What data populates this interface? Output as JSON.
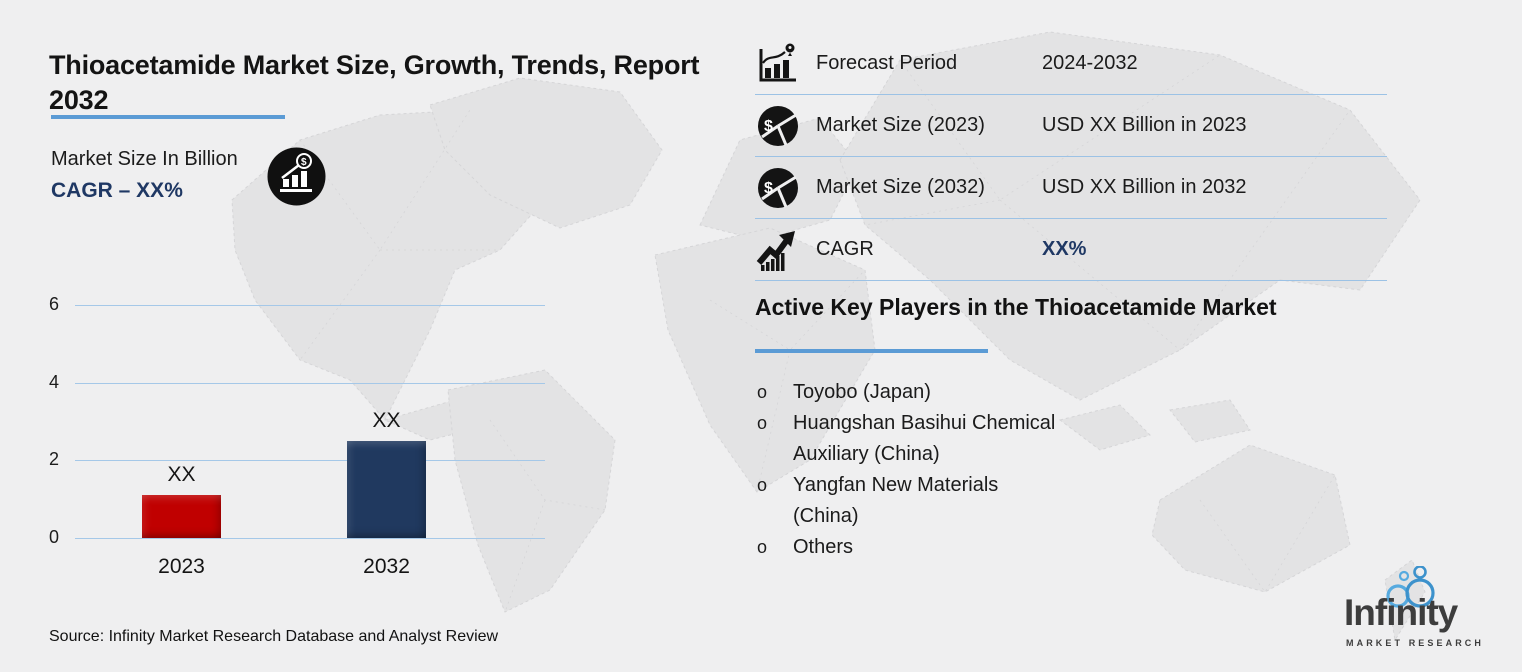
{
  "colors": {
    "accent_blue": "#5b9bd5",
    "grid_blue": "#a5c8e8",
    "navy": "#1f3864",
    "bar_red": "#c00000",
    "bar_navy": "#20395f",
    "background": "#efeff0"
  },
  "header": {
    "title": "Thioacetamide Market Size, Growth, Trends, Report 2032",
    "cagr_text": "CAGR – XX%"
  },
  "chart_data": {
    "type": "bar",
    "title": "Market Size In Billion",
    "categories": [
      "2023",
      "2032"
    ],
    "values": [
      1.1,
      2.5
    ],
    "bar_labels": [
      "XX",
      "XX"
    ],
    "colors": [
      "#c00000",
      "#20395f"
    ],
    "ylim": [
      0,
      6
    ],
    "yticks": [
      0,
      2,
      4,
      6
    ],
    "xlabel": "",
    "ylabel": "",
    "grid": true,
    "legend": "none"
  },
  "stats": {
    "rows": [
      {
        "icon": "forecast-chart-pin-icon",
        "label": "Forecast Period",
        "value": "2024-2032"
      },
      {
        "icon": "pie-dollar-icon",
        "label": "Market Size (2023)",
        "value": "USD XX Billion in 2023"
      },
      {
        "icon": "pie-dollar-icon",
        "label": "Market Size (2032)",
        "value": "USD XX Billion in 2032"
      },
      {
        "icon": "growth-arrow-icon",
        "label": "CAGR",
        "value": "XX%"
      }
    ]
  },
  "players": {
    "heading": "Active Key Players in the Thioacetamide Market",
    "bullet": "o",
    "items": [
      "Toyobo (Japan)",
      "Huangshan Basihui Chemical Auxiliary (China)",
      "Yangfan New Materials (China)",
      "Others"
    ]
  },
  "source": {
    "text": "Source: Infinity Market Research Database and Analyst Review"
  },
  "logo": {
    "name": "Infinity",
    "tagline": "MARKET RESEARCH"
  }
}
